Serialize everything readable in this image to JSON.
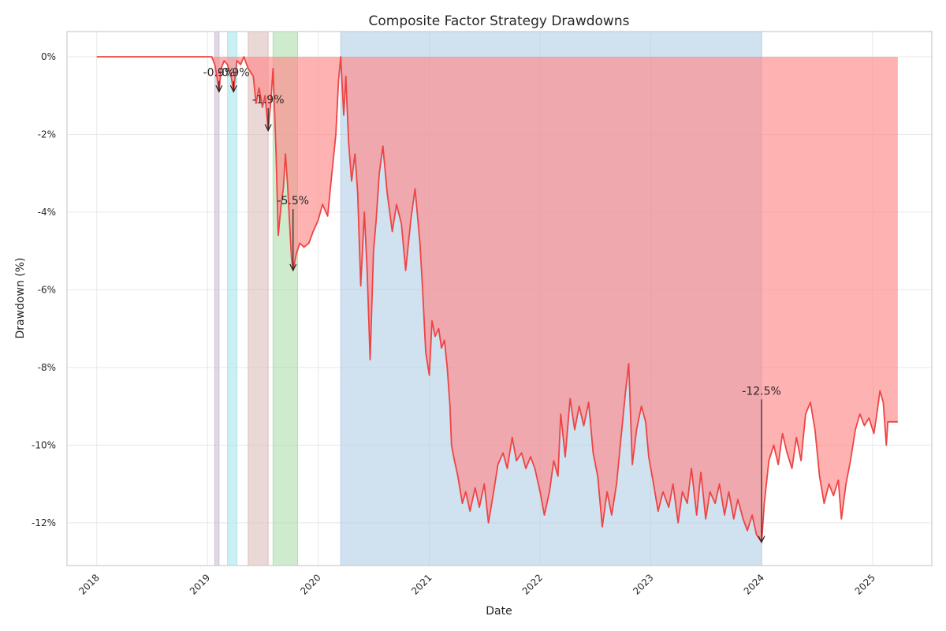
{
  "chart_data": {
    "type": "area",
    "title": "Composite Factor Strategy Drawdowns",
    "xlabel": "Date",
    "ylabel": "Drawdown (%)",
    "xlim": [
      "2017-09-25",
      "2025-07-15"
    ],
    "ylim": [
      -13.1,
      0.65
    ],
    "grid": true,
    "legend": "none",
    "x_ticks": [
      "2018",
      "2019",
      "2020",
      "2021",
      "2022",
      "2023",
      "2024",
      "2025"
    ],
    "x_tick_dates": [
      "2018-01-01",
      "2019-01-01",
      "2020-01-01",
      "2021-01-01",
      "2022-01-01",
      "2023-01-01",
      "2024-01-01",
      "2025-01-01"
    ],
    "y_ticks": [
      0,
      -2,
      -4,
      -6,
      -8,
      -10,
      -12
    ],
    "y_tick_labels": [
      "0%",
      "-2%",
      "-4%",
      "-6%",
      "-8%",
      "-10%",
      "-12%"
    ],
    "series": [
      {
        "color": "#ee4444",
        "fill": "#ff8888",
        "points": [
          [
            "2018-01-01",
            0
          ],
          [
            "2018-06-01",
            0
          ],
          [
            "2019-01-01",
            0
          ],
          [
            "2019-01-15",
            0
          ],
          [
            "2019-01-25",
            -0.2
          ],
          [
            "2019-02-01",
            -0.5
          ],
          [
            "2019-02-08",
            -0.9
          ],
          [
            "2019-02-15",
            -0.3
          ],
          [
            "2019-02-25",
            -0.1
          ],
          [
            "2019-03-08",
            -0.2
          ],
          [
            "2019-03-20",
            -0.5
          ],
          [
            "2019-03-28",
            -0.9
          ],
          [
            "2019-04-08",
            -0.1
          ],
          [
            "2019-04-20",
            -0.2
          ],
          [
            "2019-05-01",
            0
          ],
          [
            "2019-05-15",
            -0.3
          ],
          [
            "2019-06-01",
            -0.5
          ],
          [
            "2019-06-10",
            -1.2
          ],
          [
            "2019-06-20",
            -0.8
          ],
          [
            "2019-07-01",
            -1.3
          ],
          [
            "2019-07-10",
            -1.0
          ],
          [
            "2019-07-20",
            -1.9
          ],
          [
            "2019-07-28",
            -1.2
          ],
          [
            "2019-08-05",
            -0.3
          ],
          [
            "2019-08-15",
            -2.5
          ],
          [
            "2019-08-22",
            -4.6
          ],
          [
            "2019-09-01",
            -3.8
          ],
          [
            "2019-09-08",
            -3.4
          ],
          [
            "2019-09-15",
            -2.5
          ],
          [
            "2019-09-22",
            -3.3
          ],
          [
            "2019-09-30",
            -4.5
          ],
          [
            "2019-10-05",
            -5.2
          ],
          [
            "2019-10-10",
            -5.5
          ],
          [
            "2019-10-20",
            -5.1
          ],
          [
            "2019-11-01",
            -4.8
          ],
          [
            "2019-11-15",
            -4.9
          ],
          [
            "2019-12-01",
            -4.8
          ],
          [
            "2019-12-15",
            -4.5
          ],
          [
            "2020-01-01",
            -4.2
          ],
          [
            "2020-01-15",
            -3.8
          ],
          [
            "2020-02-01",
            -4.1
          ],
          [
            "2020-02-15",
            -3.0
          ],
          [
            "2020-02-28",
            -2.0
          ],
          [
            "2020-03-08",
            -0.6
          ],
          [
            "2020-03-15",
            0
          ],
          [
            "2020-03-25",
            -1.5
          ],
          [
            "2020-04-01",
            -0.5
          ],
          [
            "2020-04-10",
            -2.2
          ],
          [
            "2020-04-20",
            -3.2
          ],
          [
            "2020-05-01",
            -2.5
          ],
          [
            "2020-05-10",
            -3.5
          ],
          [
            "2020-05-20",
            -5.9
          ],
          [
            "2020-06-01",
            -4.0
          ],
          [
            "2020-06-10",
            -5.5
          ],
          [
            "2020-06-20",
            -7.8
          ],
          [
            "2020-07-01",
            -5.0
          ],
          [
            "2020-07-10",
            -4.2
          ],
          [
            "2020-07-20",
            -3.0
          ],
          [
            "2020-08-01",
            -2.3
          ],
          [
            "2020-08-15",
            -3.5
          ],
          [
            "2020-09-01",
            -4.5
          ],
          [
            "2020-09-15",
            -3.8
          ],
          [
            "2020-10-01",
            -4.3
          ],
          [
            "2020-10-15",
            -5.5
          ],
          [
            "2020-11-01",
            -4.2
          ],
          [
            "2020-11-15",
            -3.4
          ],
          [
            "2020-12-01",
            -4.8
          ],
          [
            "2020-12-10",
            -6.0
          ],
          [
            "2020-12-20",
            -7.6
          ],
          [
            "2021-01-01",
            -8.2
          ],
          [
            "2021-01-10",
            -6.8
          ],
          [
            "2021-01-20",
            -7.2
          ],
          [
            "2021-02-01",
            -7.0
          ],
          [
            "2021-02-10",
            -7.5
          ],
          [
            "2021-02-20",
            -7.3
          ],
          [
            "2021-03-01",
            -8.0
          ],
          [
            "2021-03-10",
            -9.0
          ],
          [
            "2021-03-15",
            -10.0
          ],
          [
            "2021-03-25",
            -10.4
          ],
          [
            "2021-04-05",
            -10.8
          ],
          [
            "2021-04-20",
            -11.5
          ],
          [
            "2021-05-01",
            -11.2
          ],
          [
            "2021-05-15",
            -11.7
          ],
          [
            "2021-06-01",
            -11.1
          ],
          [
            "2021-06-15",
            -11.6
          ],
          [
            "2021-07-01",
            -11.0
          ],
          [
            "2021-07-15",
            -12.0
          ],
          [
            "2021-08-01",
            -11.2
          ],
          [
            "2021-08-15",
            -10.5
          ],
          [
            "2021-09-01",
            -10.2
          ],
          [
            "2021-09-15",
            -10.6
          ],
          [
            "2021-10-01",
            -9.8
          ],
          [
            "2021-10-15",
            -10.4
          ],
          [
            "2021-11-01",
            -10.2
          ],
          [
            "2021-11-15",
            -10.6
          ],
          [
            "2021-12-01",
            -10.3
          ],
          [
            "2021-12-15",
            -10.6
          ],
          [
            "2022-01-01",
            -11.2
          ],
          [
            "2022-01-15",
            -11.8
          ],
          [
            "2022-02-01",
            -11.2
          ],
          [
            "2022-02-15",
            -10.4
          ],
          [
            "2022-03-01",
            -10.8
          ],
          [
            "2022-03-10",
            -9.2
          ],
          [
            "2022-03-25",
            -10.3
          ],
          [
            "2022-04-10",
            -8.8
          ],
          [
            "2022-04-25",
            -9.6
          ],
          [
            "2022-05-10",
            -9.0
          ],
          [
            "2022-05-25",
            -9.5
          ],
          [
            "2022-06-10",
            -8.9
          ],
          [
            "2022-06-25",
            -10.2
          ],
          [
            "2022-07-10",
            -10.8
          ],
          [
            "2022-07-25",
            -12.1
          ],
          [
            "2022-08-10",
            -11.2
          ],
          [
            "2022-08-25",
            -11.8
          ],
          [
            "2022-09-10",
            -11.0
          ],
          [
            "2022-09-25",
            -9.8
          ],
          [
            "2022-10-10",
            -8.6
          ],
          [
            "2022-10-20",
            -7.9
          ],
          [
            "2022-11-01",
            -10.5
          ],
          [
            "2022-11-15",
            -9.6
          ],
          [
            "2022-12-01",
            -9.0
          ],
          [
            "2022-12-15",
            -9.4
          ],
          [
            "2022-12-25",
            -10.3
          ],
          [
            "2023-01-10",
            -11.0
          ],
          [
            "2023-01-25",
            -11.7
          ],
          [
            "2023-02-10",
            -11.2
          ],
          [
            "2023-03-01",
            -11.6
          ],
          [
            "2023-03-15",
            -11.0
          ],
          [
            "2023-04-01",
            -12.0
          ],
          [
            "2023-04-15",
            -11.2
          ],
          [
            "2023-05-01",
            -11.5
          ],
          [
            "2023-05-15",
            -10.6
          ],
          [
            "2023-06-01",
            -11.8
          ],
          [
            "2023-06-15",
            -10.7
          ],
          [
            "2023-07-01",
            -11.9
          ],
          [
            "2023-07-15",
            -11.2
          ],
          [
            "2023-08-01",
            -11.5
          ],
          [
            "2023-08-15",
            -11.0
          ],
          [
            "2023-09-01",
            -11.8
          ],
          [
            "2023-09-15",
            -11.2
          ],
          [
            "2023-10-01",
            -11.9
          ],
          [
            "2023-10-15",
            -11.4
          ],
          [
            "2023-11-01",
            -11.9
          ],
          [
            "2023-11-15",
            -12.2
          ],
          [
            "2023-12-01",
            -11.8
          ],
          [
            "2023-12-15",
            -12.3
          ],
          [
            "2024-01-01",
            -12.5
          ],
          [
            "2024-01-10",
            -11.5
          ],
          [
            "2024-01-25",
            -10.4
          ],
          [
            "2024-02-10",
            -10.0
          ],
          [
            "2024-02-25",
            -10.5
          ],
          [
            "2024-03-10",
            -9.7
          ],
          [
            "2024-03-25",
            -10.2
          ],
          [
            "2024-04-10",
            -10.6
          ],
          [
            "2024-04-25",
            -9.8
          ],
          [
            "2024-05-10",
            -10.4
          ],
          [
            "2024-05-25",
            -9.2
          ],
          [
            "2024-06-10",
            -8.9
          ],
          [
            "2024-06-25",
            -9.6
          ],
          [
            "2024-07-10",
            -10.8
          ],
          [
            "2024-07-25",
            -11.5
          ],
          [
            "2024-08-10",
            -11.0
          ],
          [
            "2024-08-25",
            -11.3
          ],
          [
            "2024-09-10",
            -10.9
          ],
          [
            "2024-09-20",
            -11.9
          ],
          [
            "2024-10-05",
            -11.0
          ],
          [
            "2024-10-20",
            -10.4
          ],
          [
            "2024-11-05",
            -9.6
          ],
          [
            "2024-11-20",
            -9.2
          ],
          [
            "2024-12-05",
            -9.5
          ],
          [
            "2024-12-20",
            -9.3
          ],
          [
            "2025-01-05",
            -9.7
          ],
          [
            "2025-01-15",
            -9.2
          ],
          [
            "2025-01-25",
            -8.6
          ],
          [
            "2025-02-05",
            -8.9
          ],
          [
            "2025-02-15",
            -10.0
          ],
          [
            "2025-02-20",
            -9.4
          ],
          [
            "2025-03-25",
            -9.4
          ]
        ]
      }
    ],
    "shaded_periods": [
      {
        "start": "2019-01-25",
        "end": "2019-02-08",
        "color": "#c8b8cc"
      },
      {
        "start": "2019-03-08",
        "end": "2019-04-08",
        "color": "#9ee3ea"
      },
      {
        "start": "2019-05-15",
        "end": "2019-07-20",
        "color": "#d9b8b4"
      },
      {
        "start": "2019-08-05",
        "end": "2019-10-25",
        "color": "#a8dba5"
      },
      {
        "start": "2020-03-15",
        "end": "2024-01-01",
        "color": "#a9cbe3"
      }
    ],
    "annotations": [
      {
        "text": "-0.9%",
        "x": "2019-02-08",
        "y": -0.9,
        "text_x": "2019-02-08",
        "text_y": -0.5
      },
      {
        "text": "-0.9%",
        "x": "2019-03-28",
        "y": -0.9,
        "text_x": "2019-03-28",
        "text_y": -0.5
      },
      {
        "text": "-1.9%",
        "x": "2019-07-20",
        "y": -1.9,
        "text_x": "2019-07-20",
        "text_y": -1.2
      },
      {
        "text": "-5.5%",
        "x": "2019-10-10",
        "y": -5.5,
        "text_x": "2019-10-10",
        "text_y": -3.8
      },
      {
        "text": "-12.5%",
        "x": "2024-01-01",
        "y": -12.5,
        "text_x": "2024-01-01",
        "text_y": -8.7
      }
    ]
  }
}
